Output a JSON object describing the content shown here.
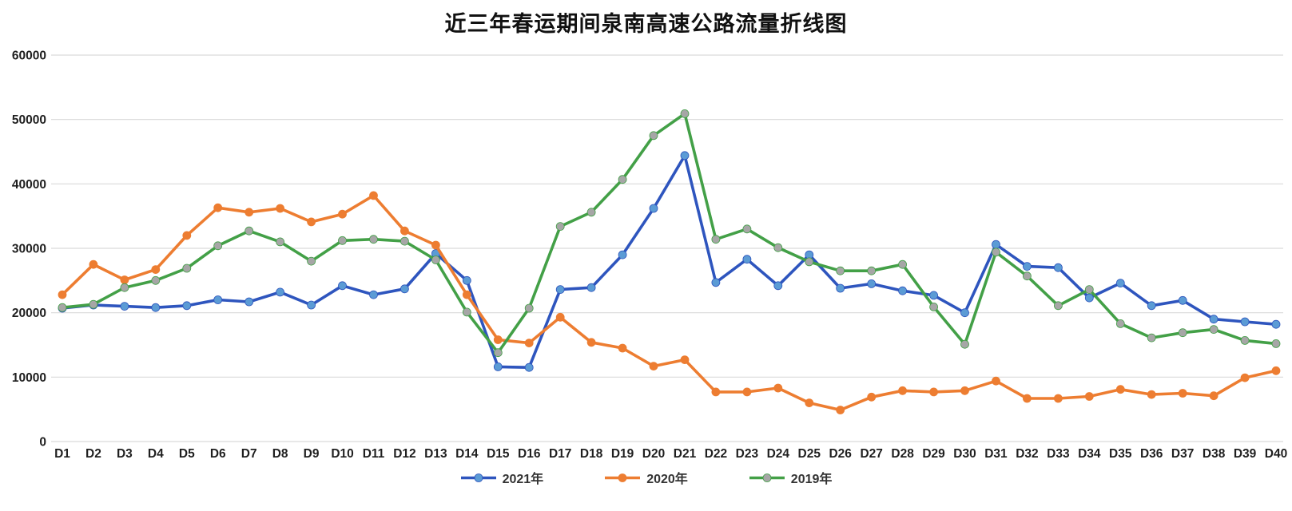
{
  "chart_data": {
    "type": "line",
    "title": "近三年春运期间泉南高速公路流量折线图",
    "xlabel": "",
    "ylabel": "",
    "ylim": [
      0,
      60000
    ],
    "yticks": [
      0,
      10000,
      20000,
      30000,
      40000,
      50000,
      60000
    ],
    "grid": "horizontal",
    "grid_color": "#d9d9d9",
    "legend_position": "bottom",
    "categories": [
      "D1",
      "D2",
      "D3",
      "D4",
      "D5",
      "D6",
      "D7",
      "D8",
      "D9",
      "D10",
      "D11",
      "D12",
      "D13",
      "D14",
      "D15",
      "D16",
      "D17",
      "D18",
      "D19",
      "D20",
      "D21",
      "D22",
      "D23",
      "D24",
      "D25",
      "D26",
      "D27",
      "D28",
      "D29",
      "D30",
      "D31",
      "D32",
      "D33",
      "D34",
      "D35",
      "D36",
      "D37",
      "D38",
      "D39",
      "D40"
    ],
    "series": [
      {
        "name": "2021年",
        "line_color": "#2e55be",
        "marker_color": "#5b9bd5",
        "values": [
          20700,
          21200,
          21000,
          20800,
          21100,
          22000,
          21700,
          23200,
          21200,
          24200,
          22800,
          23700,
          29200,
          25000,
          11600,
          11500,
          23600,
          23900,
          29000,
          36200,
          44400,
          24700,
          28300,
          24200,
          29000,
          23800,
          24500,
          23400,
          22700,
          20000,
          30600,
          27200,
          27000,
          22300,
          24600,
          21100,
          21900,
          19000,
          18600,
          18200
        ]
      },
      {
        "name": "2020年",
        "line_color": "#ed7d31",
        "marker_color": "#ed7d31",
        "values": [
          22800,
          27500,
          25100,
          26700,
          32000,
          36300,
          35600,
          36200,
          34100,
          35300,
          38200,
          32700,
          30500,
          22800,
          15800,
          15300,
          19300,
          15400,
          14500,
          11700,
          12700,
          7700,
          7700,
          8300,
          6000,
          4900,
          6900,
          7900,
          7700,
          7900,
          9400,
          6700,
          6700,
          7000,
          8100,
          7300,
          7500,
          7100,
          9900,
          11000
        ]
      },
      {
        "name": "2019年",
        "line_color": "#43a047",
        "marker_color": "#a6a6a6",
        "values": [
          20800,
          21300,
          23900,
          25000,
          26900,
          30400,
          32700,
          31000,
          28000,
          31200,
          31400,
          31100,
          28200,
          20100,
          13800,
          20700,
          33400,
          35600,
          40700,
          47500,
          50900,
          31400,
          33000,
          30100,
          27900,
          26500,
          26500,
          27500,
          20900,
          15100,
          29400,
          25700,
          21100,
          23600,
          18300,
          16100,
          16900,
          17400,
          15700,
          15200
        ]
      }
    ]
  }
}
